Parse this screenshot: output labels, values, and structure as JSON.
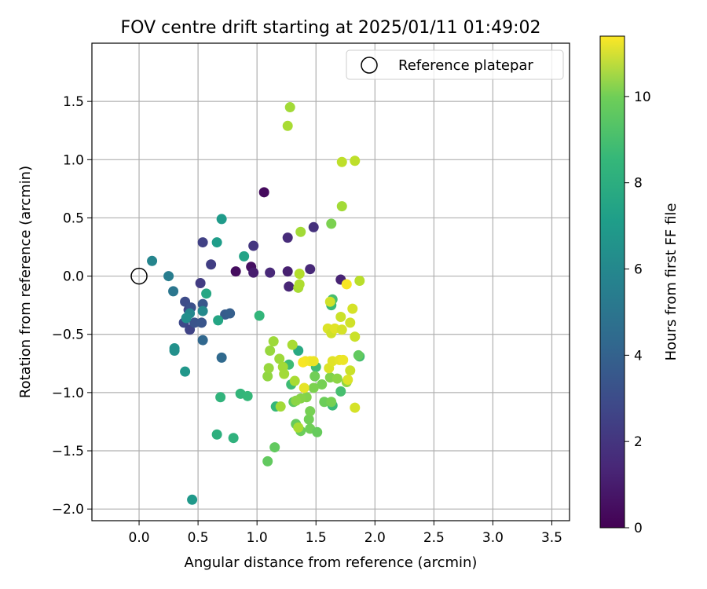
{
  "chart_data": {
    "type": "scatter",
    "title": "FOV centre drift starting at 2025/01/11 01:49:02",
    "xlabel": "Angular distance from reference (arcmin)",
    "ylabel": "Rotation from reference (arcmin)",
    "xlim": [
      -0.4,
      3.65
    ],
    "ylim": [
      -2.1,
      2.0
    ],
    "xticks": [
      0.0,
      0.5,
      1.0,
      1.5,
      2.0,
      2.5,
      3.0,
      3.5
    ],
    "yticks": [
      -2.0,
      -1.5,
      -1.0,
      -0.5,
      0.0,
      0.5,
      1.0,
      1.5
    ],
    "xtick_labels": [
      "0.0",
      "0.5",
      "1.0",
      "1.5",
      "2.0",
      "2.5",
      "3.0",
      "3.5"
    ],
    "ytick_labels": [
      "−2.0",
      "−1.5",
      "−1.0",
      "−0.5",
      "0.0",
      "0.5",
      "1.0",
      "1.5"
    ],
    "grid": true,
    "legend": {
      "label": "Reference platepar",
      "placement": "top-right"
    },
    "reference_point": {
      "x": 0.0,
      "y": 0.0
    },
    "colorbar": {
      "label": "Hours from first FF file",
      "colormap": "viridis",
      "range": [
        0,
        11.4
      ],
      "ticks": [
        0,
        2,
        4,
        6,
        8,
        10
      ],
      "tick_labels": [
        "0",
        "2",
        "4",
        "6",
        "8",
        "10"
      ]
    },
    "points": [
      {
        "x": 1.06,
        "y": 0.72,
        "h": 0.3
      },
      {
        "x": 0.82,
        "y": 0.04,
        "h": 0.4
      },
      {
        "x": 0.95,
        "y": 0.08,
        "h": 0.5
      },
      {
        "x": 0.97,
        "y": 0.03,
        "h": 0.9
      },
      {
        "x": 1.11,
        "y": 0.03,
        "h": 1.3
      },
      {
        "x": 1.26,
        "y": 0.04,
        "h": 1.0
      },
      {
        "x": 1.27,
        "y": -0.09,
        "h": 1.2
      },
      {
        "x": 1.26,
        "y": 0.33,
        "h": 1.4
      },
      {
        "x": 1.48,
        "y": 0.42,
        "h": 1.6
      },
      {
        "x": 1.45,
        "y": 0.06,
        "h": 1.3
      },
      {
        "x": 1.71,
        "y": -0.03,
        "h": 1.1
      },
      {
        "x": 0.97,
        "y": 0.26,
        "h": 1.8
      },
      {
        "x": 0.54,
        "y": 0.29,
        "h": 2.2
      },
      {
        "x": 0.61,
        "y": 0.1,
        "h": 2.1
      },
      {
        "x": 0.52,
        "y": -0.06,
        "h": 2.0
      },
      {
        "x": 0.42,
        "y": -0.29,
        "h": 2.4
      },
      {
        "x": 0.39,
        "y": -0.22,
        "h": 2.6
      },
      {
        "x": 0.44,
        "y": -0.27,
        "h": 2.8
      },
      {
        "x": 0.38,
        "y": -0.4,
        "h": 2.5
      },
      {
        "x": 0.43,
        "y": -0.46,
        "h": 2.3
      },
      {
        "x": 0.47,
        "y": -0.4,
        "h": 2.9
      },
      {
        "x": 0.53,
        "y": -0.4,
        "h": 3.0
      },
      {
        "x": 0.54,
        "y": -0.24,
        "h": 3.1
      },
      {
        "x": 0.54,
        "y": -0.55,
        "h": 3.8
      },
      {
        "x": 0.73,
        "y": -0.33,
        "h": 3.3
      },
      {
        "x": 0.77,
        "y": -0.32,
        "h": 3.4
      },
      {
        "x": 0.7,
        "y": -0.7,
        "h": 3.9
      },
      {
        "x": 0.29,
        "y": -0.13,
        "h": 4.5
      },
      {
        "x": 0.25,
        "y": 0.0,
        "h": 4.8
      },
      {
        "x": 0.11,
        "y": 0.13,
        "h": 5.2
      },
      {
        "x": 0.54,
        "y": -0.3,
        "h": 5.4
      },
      {
        "x": 0.43,
        "y": -0.32,
        "h": 5.3
      },
      {
        "x": 0.4,
        "y": -0.36,
        "h": 5.6
      },
      {
        "x": 0.3,
        "y": -0.62,
        "h": 5.8
      },
      {
        "x": 0.3,
        "y": -0.64,
        "h": 5.7
      },
      {
        "x": 0.39,
        "y": -0.82,
        "h": 6.0
      },
      {
        "x": 0.45,
        "y": -1.92,
        "h": 6.1
      },
      {
        "x": 0.66,
        "y": 0.29,
        "h": 6.3
      },
      {
        "x": 0.7,
        "y": 0.49,
        "h": 6.2
      },
      {
        "x": 0.57,
        "y": -0.15,
        "h": 6.8
      },
      {
        "x": 0.67,
        "y": -0.38,
        "h": 6.7
      },
      {
        "x": 0.89,
        "y": 0.17,
        "h": 6.6
      },
      {
        "x": 1.35,
        "y": -0.64,
        "h": 6.9
      },
      {
        "x": 0.69,
        "y": -1.04,
        "h": 7.4
      },
      {
        "x": 0.86,
        "y": -1.01,
        "h": 7.5
      },
      {
        "x": 0.92,
        "y": -1.03,
        "h": 7.6
      },
      {
        "x": 1.02,
        "y": -0.34,
        "h": 7.5
      },
      {
        "x": 0.66,
        "y": -1.36,
        "h": 7.2
      },
      {
        "x": 0.8,
        "y": -1.39,
        "h": 7.3
      },
      {
        "x": 1.16,
        "y": -1.12,
        "h": 7.6
      },
      {
        "x": 1.29,
        "y": -0.93,
        "h": 7.8
      },
      {
        "x": 1.27,
        "y": -0.76,
        "h": 7.8
      },
      {
        "x": 1.5,
        "y": -0.78,
        "h": 7.9
      },
      {
        "x": 1.63,
        "y": -0.25,
        "h": 7.7
      },
      {
        "x": 1.64,
        "y": -0.2,
        "h": 8.0
      },
      {
        "x": 1.87,
        "y": -0.69,
        "h": 7.9
      },
      {
        "x": 1.64,
        "y": -1.11,
        "h": 7.7
      },
      {
        "x": 1.71,
        "y": -0.99,
        "h": 8.0
      },
      {
        "x": 1.15,
        "y": -1.47,
        "h": 8.6
      },
      {
        "x": 1.09,
        "y": -1.59,
        "h": 8.6
      },
      {
        "x": 1.31,
        "y": -1.08,
        "h": 8.5
      },
      {
        "x": 1.33,
        "y": -1.27,
        "h": 8.7
      },
      {
        "x": 1.37,
        "y": -1.33,
        "h": 8.8
      },
      {
        "x": 1.45,
        "y": -1.31,
        "h": 8.9
      },
      {
        "x": 1.51,
        "y": -1.34,
        "h": 8.7
      },
      {
        "x": 1.44,
        "y": -1.23,
        "h": 8.9
      },
      {
        "x": 1.45,
        "y": -1.16,
        "h": 9.0
      },
      {
        "x": 1.57,
        "y": -1.08,
        "h": 8.8
      },
      {
        "x": 1.63,
        "y": -1.08,
        "h": 9.0
      },
      {
        "x": 1.55,
        "y": -0.93,
        "h": 9.0
      },
      {
        "x": 1.62,
        "y": -0.87,
        "h": 9.2
      },
      {
        "x": 1.49,
        "y": -0.86,
        "h": 8.9
      },
      {
        "x": 1.48,
        "y": -0.96,
        "h": 9.1
      },
      {
        "x": 1.42,
        "y": -1.04,
        "h": 9.2
      },
      {
        "x": 1.37,
        "y": -1.05,
        "h": 9.3
      },
      {
        "x": 1.33,
        "y": -1.07,
        "h": 9.4
      },
      {
        "x": 1.63,
        "y": 0.45,
        "h": 9.1
      },
      {
        "x": 1.68,
        "y": -0.88,
        "h": 9.4
      },
      {
        "x": 1.76,
        "y": -0.91,
        "h": 9.5
      },
      {
        "x": 1.09,
        "y": -0.86,
        "h": 9.5
      },
      {
        "x": 1.1,
        "y": -0.79,
        "h": 9.6
      },
      {
        "x": 1.11,
        "y": -0.64,
        "h": 9.6
      },
      {
        "x": 1.14,
        "y": -0.56,
        "h": 9.7
      },
      {
        "x": 1.19,
        "y": -0.71,
        "h": 9.7
      },
      {
        "x": 1.22,
        "y": -0.78,
        "h": 9.8
      },
      {
        "x": 1.23,
        "y": -0.84,
        "h": 9.8
      },
      {
        "x": 1.3,
        "y": -0.59,
        "h": 9.9
      },
      {
        "x": 1.32,
        "y": -0.9,
        "h": 9.9
      },
      {
        "x": 1.2,
        "y": -1.12,
        "h": 9.8
      },
      {
        "x": 1.35,
        "y": -1.3,
        "h": 9.9
      },
      {
        "x": 1.35,
        "y": -0.1,
        "h": 9.9
      },
      {
        "x": 1.36,
        "y": -0.07,
        "h": 10.0
      },
      {
        "x": 1.36,
        "y": 0.02,
        "h": 10.1
      },
      {
        "x": 1.37,
        "y": 0.38,
        "h": 9.8
      },
      {
        "x": 1.26,
        "y": 1.29,
        "h": 9.9
      },
      {
        "x": 1.28,
        "y": 1.45,
        "h": 9.8
      },
      {
        "x": 1.72,
        "y": 0.6,
        "h": 9.8
      },
      {
        "x": 1.87,
        "y": -0.04,
        "h": 10.2
      },
      {
        "x": 1.86,
        "y": -0.68,
        "h": 8.6
      },
      {
        "x": 1.72,
        "y": 0.98,
        "h": 10.3
      },
      {
        "x": 1.83,
        "y": 0.99,
        "h": 10.3
      },
      {
        "x": 1.62,
        "y": -0.22,
        "h": 10.6
      },
      {
        "x": 1.71,
        "y": -0.35,
        "h": 10.5
      },
      {
        "x": 1.81,
        "y": -0.28,
        "h": 10.7
      },
      {
        "x": 1.6,
        "y": -0.45,
        "h": 10.8
      },
      {
        "x": 1.63,
        "y": -0.49,
        "h": 10.6
      },
      {
        "x": 1.66,
        "y": -0.45,
        "h": 10.9
      },
      {
        "x": 1.72,
        "y": -0.46,
        "h": 10.7
      },
      {
        "x": 1.79,
        "y": -0.4,
        "h": 10.6
      },
      {
        "x": 1.83,
        "y": -0.52,
        "h": 10.5
      },
      {
        "x": 1.61,
        "y": -0.79,
        "h": 10.8
      },
      {
        "x": 1.64,
        "y": -0.73,
        "h": 10.9
      },
      {
        "x": 1.7,
        "y": -0.72,
        "h": 11.0
      },
      {
        "x": 1.73,
        "y": -0.72,
        "h": 11.1
      },
      {
        "x": 1.79,
        "y": -0.81,
        "h": 10.5
      },
      {
        "x": 1.77,
        "y": -0.89,
        "h": 10.8
      },
      {
        "x": 1.83,
        "y": -1.13,
        "h": 10.7
      },
      {
        "x": 1.41,
        "y": -0.73,
        "h": 11.2
      },
      {
        "x": 1.39,
        "y": -0.74,
        "h": 11.3
      },
      {
        "x": 1.45,
        "y": -0.73,
        "h": 11.2
      },
      {
        "x": 1.48,
        "y": -0.73,
        "h": 11.1
      },
      {
        "x": 1.4,
        "y": -0.96,
        "h": 11.0
      },
      {
        "x": 1.76,
        "y": -0.07,
        "h": 11.3
      }
    ]
  }
}
